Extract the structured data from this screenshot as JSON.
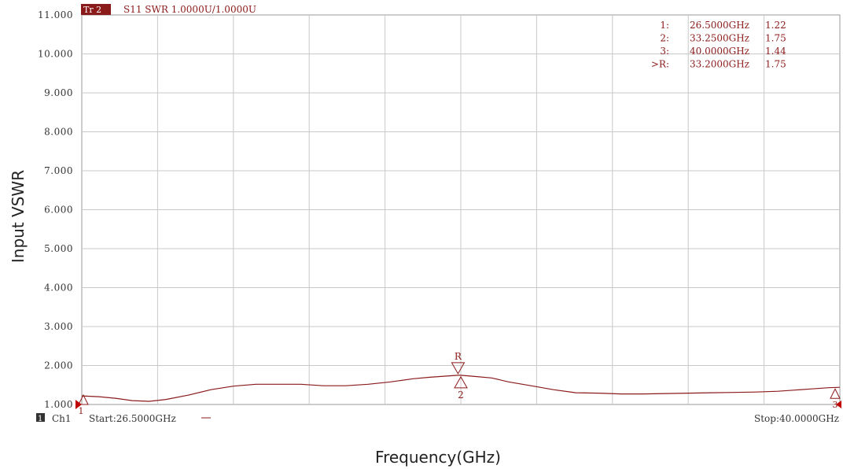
{
  "header": {
    "trace_badge": "Tr 2",
    "trace_text": "S11 SWR 1.0000U/1.0000U"
  },
  "markers_table": [
    {
      "label": "1:",
      "freq": "26.5000GHz",
      "value": "1.22"
    },
    {
      "label": "2:",
      "freq": "33.2500GHz",
      "value": "1.75"
    },
    {
      "label": "3:",
      "freq": "40.0000GHz",
      "value": "1.44"
    },
    {
      "label": ">R:",
      "freq": "33.2000GHz",
      "value": "1.75"
    }
  ],
  "footer": {
    "channel_badge": "1",
    "channel": "Ch1",
    "start": "Start:26.5000GHz",
    "stop": "Stop:40.0000GHz"
  },
  "chart_data": {
    "type": "line",
    "xlabel": "Frequency(GHz)",
    "ylabel": "Input VSWR",
    "xlim": [
      26.5,
      40.0
    ],
    "ylim": [
      1.0,
      11.0
    ],
    "x_divisions": 10,
    "y_ticks": [
      "1.000",
      "2.000",
      "3.000",
      "4.000",
      "5.000",
      "6.000",
      "7.000",
      "8.000",
      "9.000",
      "10.000",
      "11.000"
    ],
    "grid": true,
    "colors": {
      "trace": "#8b1a1a",
      "grid": "#c8c8c8",
      "marker": "#8b1a1a"
    },
    "series": [
      {
        "x": [
          26.5,
          26.8,
          27.1,
          27.4,
          27.7,
          28.0,
          28.4,
          28.8,
          29.2,
          29.6,
          30.0,
          30.4,
          30.8,
          31.2,
          31.6,
          32.0,
          32.4,
          32.7,
          32.9,
          33.0,
          33.2,
          33.25,
          33.5,
          33.8,
          34.1,
          34.5,
          34.9,
          35.3,
          35.7,
          36.1,
          36.5,
          36.9,
          37.3,
          37.7,
          38.1,
          38.5,
          38.9,
          39.2,
          39.5,
          39.8,
          40.0
        ],
        "y": [
          1.22,
          1.2,
          1.16,
          1.1,
          1.08,
          1.13,
          1.24,
          1.38,
          1.47,
          1.52,
          1.52,
          1.52,
          1.48,
          1.48,
          1.52,
          1.58,
          1.66,
          1.7,
          1.72,
          1.73,
          1.75,
          1.75,
          1.72,
          1.68,
          1.58,
          1.48,
          1.38,
          1.3,
          1.29,
          1.27,
          1.27,
          1.28,
          1.29,
          1.3,
          1.31,
          1.32,
          1.34,
          1.37,
          1.4,
          1.43,
          1.44
        ]
      }
    ],
    "markers": [
      {
        "id": "1",
        "x": 26.5,
        "y": 1.22
      },
      {
        "id": "2",
        "x": 33.25,
        "y": 1.75
      },
      {
        "id": "3",
        "x": 40.0,
        "y": 1.44
      },
      {
        "id": "R",
        "x": 33.2,
        "y": 1.75
      }
    ]
  }
}
